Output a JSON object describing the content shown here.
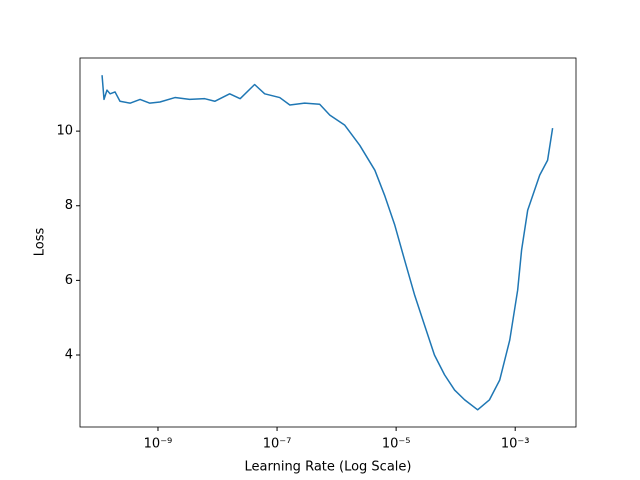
{
  "chart_data": {
    "type": "line",
    "xlabel": "Learning Rate (Log Scale)",
    "ylabel": "Loss",
    "xscale": "log",
    "color": "#1f77b4",
    "x": [
      1.15e-10,
      1.24e-10,
      1.39e-10,
      1.57e-10,
      1.9e-10,
      2.3e-10,
      3.4e-10,
      5e-10,
      7.3e-10,
      1.08e-09,
      1.93e-09,
      3.4e-09,
      6.1e-09,
      9e-09,
      1.6e-08,
      2.4e-08,
      4.2e-08,
      6.2e-08,
      1.11e-07,
      1.64e-07,
      2.9e-07,
      5.2e-07,
      7.7e-07,
      1.37e-06,
      2.45e-06,
      4.4e-06,
      6.4e-06,
      9.5e-06,
      1.39e-05,
      2.05e-05,
      3e-05,
      4.4e-05,
      6.5e-05,
      9.6e-05,
      0.000141,
      0.000234,
      0.00037,
      0.00055,
      0.00081,
      0.0011,
      0.00128,
      0.00162,
      0.00258,
      0.0035,
      0.00425
    ],
    "values": [
      11.5,
      10.85,
      11.1,
      11.0,
      11.05,
      10.8,
      10.75,
      10.85,
      10.75,
      10.78,
      10.9,
      10.85,
      10.87,
      10.8,
      11.0,
      10.87,
      11.25,
      11.0,
      10.9,
      10.7,
      10.75,
      10.72,
      10.43,
      10.16,
      9.62,
      8.95,
      8.28,
      7.48,
      6.54,
      5.6,
      4.8,
      4.0,
      3.47,
      3.06,
      2.8,
      2.53,
      2.8,
      3.33,
      4.4,
      5.74,
      6.81,
      7.88,
      8.82,
      9.22,
      10.08
    ],
    "xlim": [
      4.9e-11,
      0.0105
    ],
    "ylim": [
      2.07,
      11.96
    ],
    "xticks": [
      {
        "value": 1e-09,
        "label": "10⁻⁹"
      },
      {
        "value": 1e-07,
        "label": "10⁻⁷"
      },
      {
        "value": 1e-05,
        "label": "10⁻⁵"
      },
      {
        "value": 0.001,
        "label": "10⁻³"
      }
    ],
    "yticks": [
      4,
      6,
      8,
      10
    ]
  }
}
